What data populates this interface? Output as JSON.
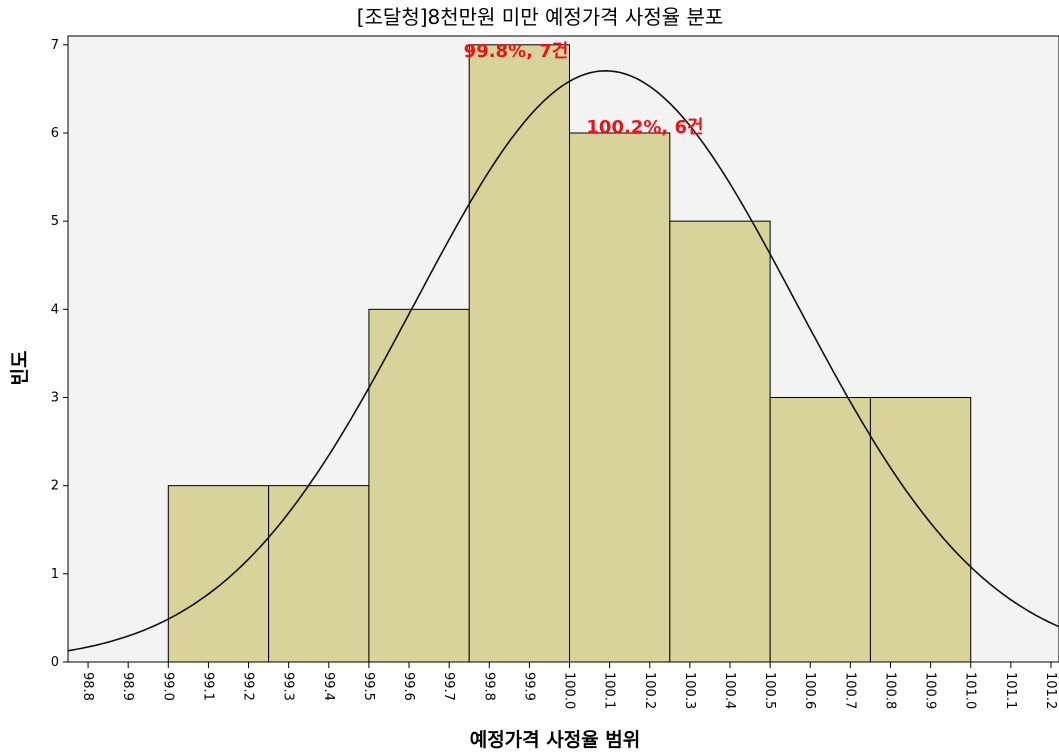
{
  "chart_data": {
    "type": "histogram",
    "title": "[조달청]8천만원 미만 예정가격 사정율 분포",
    "xlabel": "예정가격 사정율 범위",
    "ylabel": "빈도",
    "bins": [
      99.0,
      99.25,
      99.5,
      99.75,
      100.0,
      100.25,
      100.5,
      100.75,
      101.0
    ],
    "values": [
      2,
      2,
      4,
      7,
      6,
      5,
      3,
      3
    ],
    "color": "#d8d29b",
    "curve": {
      "mean": 100.09,
      "sd": 0.476
    },
    "annotations": [
      "99.8%, 7건",
      "100.2%, 6건"
    ],
    "xlim": [
      98.75,
      101.22
    ],
    "ylim": [
      0,
      7.1
    ],
    "xticks": [
      {
        "value": 98.8,
        "label": "98.8"
      },
      {
        "value": 98.9,
        "label": "98.9"
      },
      {
        "value": 99.0,
        "label": "99.0"
      },
      {
        "value": 99.1,
        "label": "99.1"
      },
      {
        "value": 99.2,
        "label": "99.2"
      },
      {
        "value": 99.3,
        "label": "99.3"
      },
      {
        "value": 99.4,
        "label": "99.4"
      },
      {
        "value": 99.5,
        "label": "99.5"
      },
      {
        "value": 99.6,
        "label": "99.6"
      },
      {
        "value": 99.7,
        "label": "99.7"
      },
      {
        "value": 99.8,
        "label": "99.8"
      },
      {
        "value": 99.9,
        "label": "99.9"
      },
      {
        "value": 100.0,
        "label": "100.0"
      },
      {
        "value": 100.1,
        "label": "100.1"
      },
      {
        "value": 100.2,
        "label": "100.2"
      },
      {
        "value": 100.3,
        "label": "100.3"
      },
      {
        "value": 100.4,
        "label": "100.4"
      },
      {
        "value": 100.5,
        "label": "100.5"
      },
      {
        "value": 100.6,
        "label": "100.6"
      },
      {
        "value": 100.7,
        "label": "100.7"
      },
      {
        "value": 100.8,
        "label": "100.8"
      },
      {
        "value": 100.9,
        "label": "100.9"
      },
      {
        "value": 101.0,
        "label": "101.0"
      },
      {
        "value": 101.1,
        "label": "101.1"
      },
      {
        "value": 101.2,
        "label": "101.2"
      }
    ],
    "yticks": [
      0,
      1,
      2,
      3,
      4,
      5,
      6,
      7
    ]
  }
}
